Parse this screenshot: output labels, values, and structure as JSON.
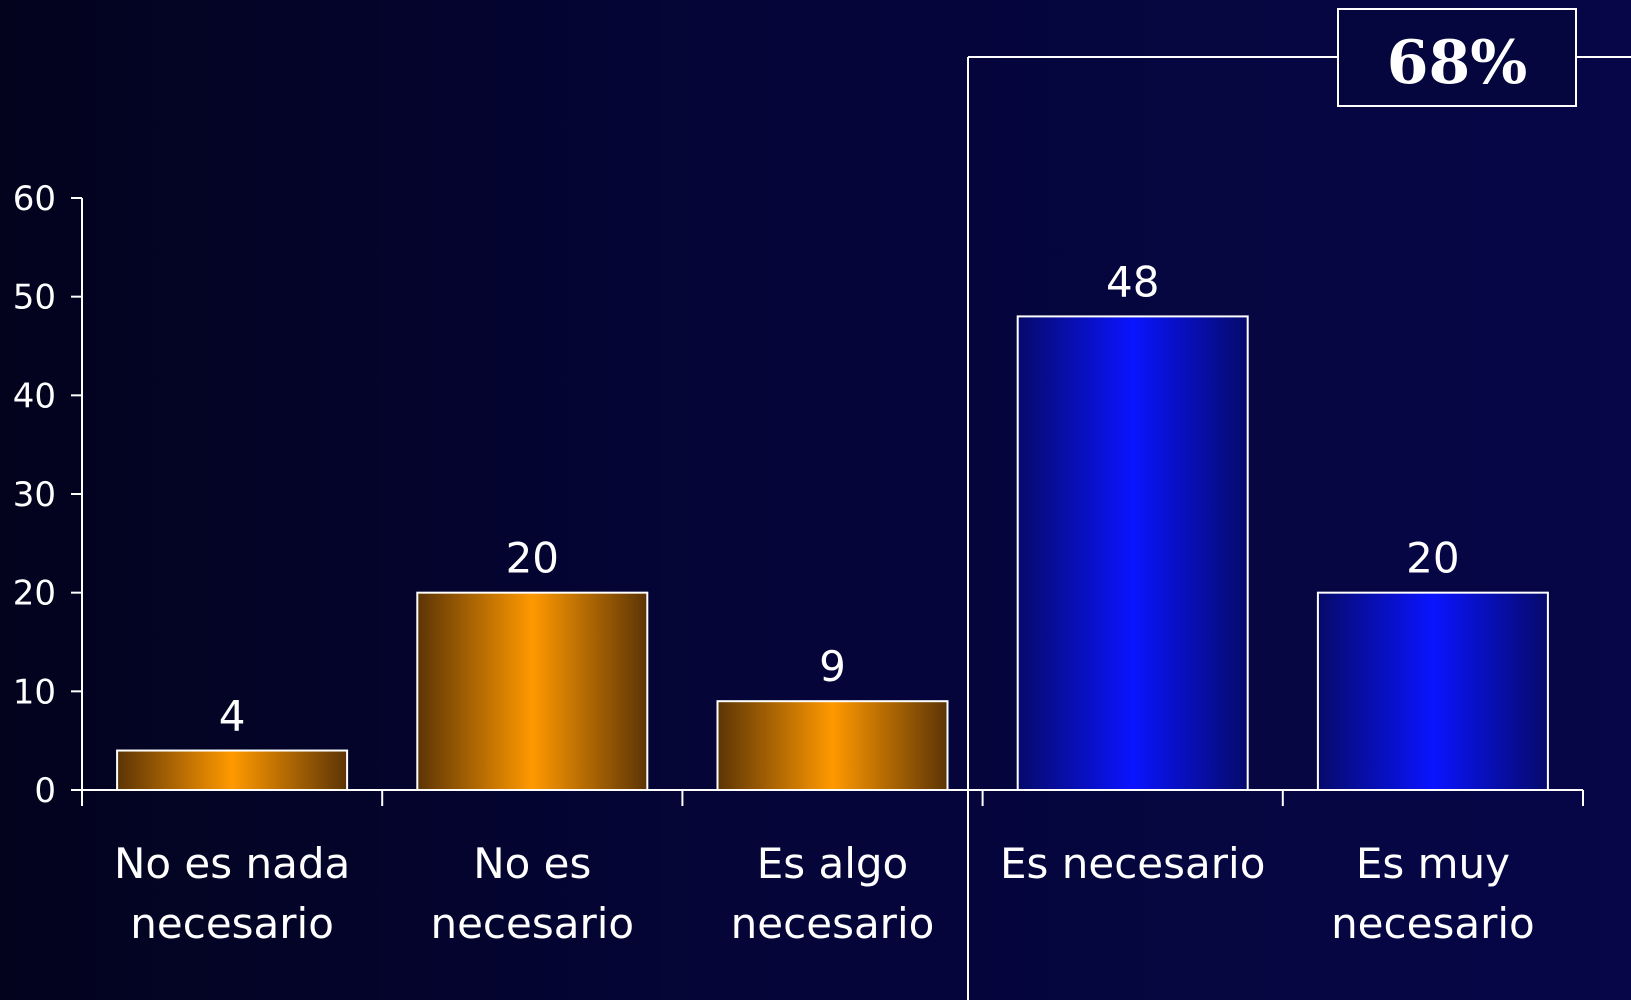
{
  "chart_data": {
    "type": "bar",
    "categories": [
      [
        "No es nada",
        "necesario"
      ],
      [
        "No es",
        "necesario"
      ],
      [
        "Es algo",
        "necesario"
      ],
      [
        "Es necesario"
      ],
      [
        "Es muy",
        "necesario"
      ]
    ],
    "values": [
      4,
      20,
      9,
      48,
      20
    ],
    "data_labels": [
      "4",
      "20",
      "9",
      "48",
      "20"
    ],
    "bar_colors": [
      "#ff9900",
      "#ff9900",
      "#ff9900",
      "#0a14ff",
      "#0a14ff"
    ],
    "yticks": [
      0,
      10,
      20,
      30,
      40,
      50,
      60
    ],
    "ylim": [
      0,
      60
    ],
    "grid": false,
    "title": "",
    "xlabel": "",
    "ylabel": ""
  },
  "callout": {
    "label": "68%",
    "groups_categories": [
      3,
      4
    ]
  }
}
